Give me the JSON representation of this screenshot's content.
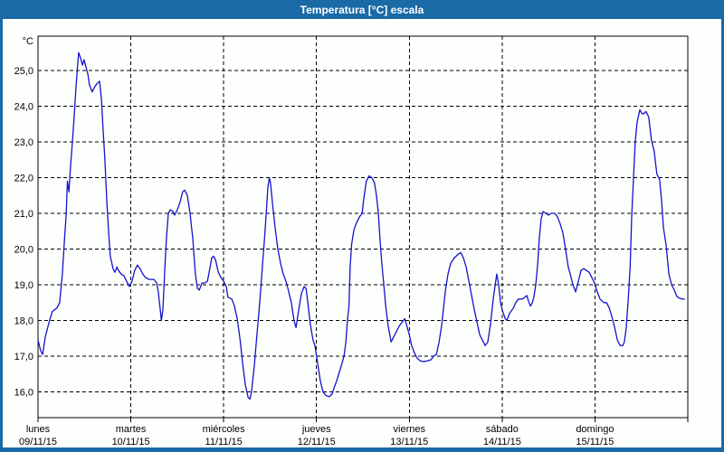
{
  "window": {
    "title": "Temperatura [°C] escala"
  },
  "colors": {
    "titlebar": "#1a6aa6",
    "frame": "#1a6aa6",
    "plot_background": "#fdfffd",
    "plot_line": "#1313cc",
    "grid": "#000000",
    "axis_text": "#000000",
    "title_text": "#ffffff"
  },
  "chart_data": {
    "type": "line",
    "title": "Temperatura [°C] escala",
    "xlabel": "",
    "ylabel": "°C",
    "grid": "dashed",
    "legend_position": "none",
    "xlim_hours": [
      0,
      168
    ],
    "ylim": [
      15.28,
      25.96
    ],
    "y_ticks": [
      {
        "value": 25,
        "label": "25,0"
      },
      {
        "value": 24,
        "label": "24,0"
      },
      {
        "value": 23,
        "label": "23,0"
      },
      {
        "value": 22,
        "label": "22,0"
      },
      {
        "value": 21,
        "label": "21,0"
      },
      {
        "value": 20,
        "label": "20,0"
      },
      {
        "value": 19,
        "label": "19,0"
      },
      {
        "value": 18,
        "label": "18,0"
      },
      {
        "value": 17,
        "label": "17,0"
      },
      {
        "value": 16,
        "label": "16,0"
      }
    ],
    "x_boundaries_hours": [
      0,
      24,
      48,
      72,
      96,
      120,
      144,
      168
    ],
    "x_ticks": [
      {
        "hour": 0,
        "weekday": "lunes",
        "date": "09/11/15"
      },
      {
        "hour": 24,
        "weekday": "martes",
        "date": "10/11/15"
      },
      {
        "hour": 48,
        "weekday": "miércoles",
        "date": "11/11/15"
      },
      {
        "hour": 72,
        "weekday": "jueves",
        "date": "12/11/15"
      },
      {
        "hour": 96,
        "weekday": "viernes",
        "date": "13/11/15"
      },
      {
        "hour": 120,
        "weekday": "sábado",
        "date": "14/11/15"
      },
      {
        "hour": 144,
        "weekday": "domingo",
        "date": "15/11/15"
      }
    ],
    "series": [
      {
        "name": "Temperatura [°C]",
        "color": "#1313cc",
        "points": [
          [
            0,
            17.45
          ],
          [
            0.7,
            17.15
          ],
          [
            1.2,
            17.05
          ],
          [
            1.9,
            17.55
          ],
          [
            3,
            18
          ],
          [
            3.7,
            18.25
          ],
          [
            4.9,
            18.35
          ],
          [
            5.6,
            18.5
          ],
          [
            6.3,
            19.3
          ],
          [
            6.8,
            20.2
          ],
          [
            7.3,
            21
          ],
          [
            7.6,
            21.9
          ],
          [
            8,
            21.6
          ],
          [
            8.4,
            22.3
          ],
          [
            8.9,
            23
          ],
          [
            9.4,
            23.8
          ],
          [
            9.8,
            24.5
          ],
          [
            10.2,
            25.1
          ],
          [
            10.5,
            25.5
          ],
          [
            11,
            25.35
          ],
          [
            11.5,
            25.15
          ],
          [
            11.9,
            25.3
          ],
          [
            12.4,
            25.1
          ],
          [
            12.9,
            24.9
          ],
          [
            13.3,
            24.6
          ],
          [
            14,
            24.4
          ],
          [
            14.7,
            24.55
          ],
          [
            15.4,
            24.65
          ],
          [
            15.9,
            24.7
          ],
          [
            16.4,
            24.2
          ],
          [
            16.8,
            23.4
          ],
          [
            17.3,
            22.5
          ],
          [
            17.8,
            21.3
          ],
          [
            18.3,
            20.4
          ],
          [
            18.7,
            19.8
          ],
          [
            19.4,
            19.45
          ],
          [
            19.9,
            19.35
          ],
          [
            20.4,
            19.5
          ],
          [
            20.8,
            19.4
          ],
          [
            21.5,
            19.3
          ],
          [
            22.2,
            19.25
          ],
          [
            22.9,
            19.1
          ],
          [
            23.6,
            18.95
          ],
          [
            24.3,
            19.1
          ],
          [
            25,
            19.4
          ],
          [
            25.7,
            19.55
          ],
          [
            26.4,
            19.45
          ],
          [
            27.1,
            19.3
          ],
          [
            27.8,
            19.2
          ],
          [
            28.8,
            19.15
          ],
          [
            30,
            19.15
          ],
          [
            30.7,
            19.05
          ],
          [
            31.1,
            18.8
          ],
          [
            31.6,
            18.3
          ],
          [
            31.9,
            18
          ],
          [
            32.3,
            18.3
          ],
          [
            32.8,
            19.5
          ],
          [
            33.2,
            20.3
          ],
          [
            33.7,
            21
          ],
          [
            34.2,
            21.1
          ],
          [
            34.9,
            21.05
          ],
          [
            35.3,
            20.95
          ],
          [
            36,
            21.1
          ],
          [
            36.7,
            21.3
          ],
          [
            37.4,
            21.6
          ],
          [
            37.9,
            21.65
          ],
          [
            38.6,
            21.5
          ],
          [
            39.3,
            21
          ],
          [
            40,
            20.3
          ],
          [
            40.7,
            19.3
          ],
          [
            41.2,
            18.9
          ],
          [
            41.7,
            18.85
          ],
          [
            42.4,
            19.05
          ],
          [
            43.1,
            19.05
          ],
          [
            43.8,
            19.1
          ],
          [
            44.5,
            19.5
          ],
          [
            44.9,
            19.75
          ],
          [
            45.4,
            19.8
          ],
          [
            45.9,
            19.7
          ],
          [
            46.6,
            19.35
          ],
          [
            47.3,
            19.2
          ],
          [
            48,
            19.1
          ],
          [
            48.7,
            18.95
          ],
          [
            49.1,
            18.65
          ],
          [
            50.1,
            18.6
          ],
          [
            50.8,
            18.4
          ],
          [
            51.5,
            18.05
          ],
          [
            52.2,
            17.5
          ],
          [
            52.9,
            16.8
          ],
          [
            53.6,
            16.2
          ],
          [
            54.3,
            15.85
          ],
          [
            54.8,
            15.8
          ],
          [
            55.2,
            16
          ],
          [
            55.9,
            16.7
          ],
          [
            56.6,
            17.6
          ],
          [
            57.1,
            18.2
          ],
          [
            57.6,
            18.9
          ],
          [
            58,
            19.5
          ],
          [
            58.5,
            20.2
          ],
          [
            59,
            21
          ],
          [
            59.4,
            21.7
          ],
          [
            59.8,
            22
          ],
          [
            60.1,
            21.85
          ],
          [
            60.6,
            21.3
          ],
          [
            61.3,
            20.6
          ],
          [
            62,
            20
          ],
          [
            62.7,
            19.6
          ],
          [
            63.4,
            19.3
          ],
          [
            64.1,
            19.1
          ],
          [
            64.6,
            18.9
          ],
          [
            65.5,
            18.5
          ],
          [
            66.2,
            18
          ],
          [
            66.7,
            17.8
          ],
          [
            67.4,
            18.3
          ],
          [
            68.1,
            18.75
          ],
          [
            68.8,
            18.95
          ],
          [
            69.3,
            18.9
          ],
          [
            69.7,
            18.55
          ],
          [
            70.4,
            17.9
          ],
          [
            71.1,
            17.45
          ],
          [
            71.6,
            17.3
          ],
          [
            72.3,
            16.8
          ],
          [
            73,
            16.3
          ],
          [
            73.7,
            16
          ],
          [
            74.4,
            15.9
          ],
          [
            75.4,
            15.87
          ],
          [
            76.1,
            15.95
          ],
          [
            76.5,
            16.1
          ],
          [
            77.2,
            16.3
          ],
          [
            77.9,
            16.55
          ],
          [
            78.6,
            16.8
          ],
          [
            79.1,
            17
          ],
          [
            79.6,
            17.4
          ],
          [
            80,
            18
          ],
          [
            80.4,
            18.4
          ],
          [
            80.7,
            19.5
          ],
          [
            81.1,
            20.15
          ],
          [
            81.7,
            20.55
          ],
          [
            82.4,
            20.75
          ],
          [
            83.1,
            20.9
          ],
          [
            83.8,
            21
          ],
          [
            84.2,
            21.4
          ],
          [
            84.9,
            21.9
          ],
          [
            85.6,
            22.05
          ],
          [
            86.3,
            22
          ],
          [
            87,
            21.85
          ],
          [
            87.5,
            21.5
          ],
          [
            88,
            21
          ],
          [
            88.4,
            20.3
          ],
          [
            88.9,
            19.6
          ],
          [
            89.4,
            19
          ],
          [
            89.9,
            18.4
          ],
          [
            90.6,
            17.8
          ],
          [
            91.3,
            17.4
          ],
          [
            92,
            17.55
          ],
          [
            92.7,
            17.7
          ],
          [
            93.4,
            17.85
          ],
          [
            94.1,
            17.95
          ],
          [
            94.8,
            18.05
          ],
          [
            95.5,
            17.8
          ],
          [
            96,
            17.6
          ],
          [
            96.6,
            17.3
          ],
          [
            97.3,
            17.1
          ],
          [
            98,
            16.95
          ],
          [
            98.8,
            16.87
          ],
          [
            99.7,
            16.85
          ],
          [
            100.6,
            16.87
          ],
          [
            101.6,
            16.9
          ],
          [
            102.3,
            17
          ],
          [
            103,
            17.05
          ],
          [
            103.7,
            17.4
          ],
          [
            104.4,
            17.9
          ],
          [
            104.8,
            18.3
          ],
          [
            105.3,
            18.8
          ],
          [
            106,
            19.3
          ],
          [
            106.7,
            19.6
          ],
          [
            107.6,
            19.75
          ],
          [
            108.6,
            19.85
          ],
          [
            109.3,
            19.9
          ],
          [
            110,
            19.75
          ],
          [
            110.7,
            19.5
          ],
          [
            111.4,
            19.1
          ],
          [
            112.1,
            18.7
          ],
          [
            112.8,
            18.3
          ],
          [
            113.5,
            17.95
          ],
          [
            114.2,
            17.6
          ],
          [
            114.9,
            17.45
          ],
          [
            115.6,
            17.3
          ],
          [
            116.3,
            17.4
          ],
          [
            117,
            17.9
          ],
          [
            117.7,
            18.6
          ],
          [
            118.2,
            19
          ],
          [
            118.6,
            19.3
          ],
          [
            119.1,
            19
          ],
          [
            119.6,
            18.5
          ],
          [
            120,
            18.3
          ],
          [
            120.8,
            18.05
          ],
          [
            121.2,
            18
          ],
          [
            121.9,
            18.2
          ],
          [
            122.9,
            18.35
          ],
          [
            123.5,
            18.5
          ],
          [
            124.2,
            18.6
          ],
          [
            125.2,
            18.6
          ],
          [
            125.9,
            18.65
          ],
          [
            126.4,
            18.7
          ],
          [
            126.8,
            18.55
          ],
          [
            127.3,
            18.4
          ],
          [
            127.8,
            18.5
          ],
          [
            128.2,
            18.65
          ],
          [
            128.7,
            19
          ],
          [
            129.2,
            19.6
          ],
          [
            129.6,
            20.3
          ],
          [
            130.1,
            20.85
          ],
          [
            130.6,
            21.05
          ],
          [
            131.3,
            21
          ],
          [
            132,
            20.95
          ],
          [
            132.7,
            21
          ],
          [
            133.6,
            21
          ],
          [
            134.3,
            20.9
          ],
          [
            135,
            20.7
          ],
          [
            135.7,
            20.45
          ],
          [
            136.4,
            20
          ],
          [
            137.1,
            19.5
          ],
          [
            137.6,
            19.3
          ],
          [
            138.3,
            19
          ],
          [
            139,
            18.8
          ],
          [
            139.7,
            19.1
          ],
          [
            140.4,
            19.4
          ],
          [
            141.1,
            19.45
          ],
          [
            141.8,
            19.4
          ],
          [
            142.5,
            19.35
          ],
          [
            143.2,
            19.2
          ],
          [
            143.9,
            19.05
          ],
          [
            144.6,
            18.8
          ],
          [
            145.3,
            18.6
          ],
          [
            146.3,
            18.5
          ],
          [
            147,
            18.5
          ],
          [
            147.7,
            18.35
          ],
          [
            148.4,
            18.1
          ],
          [
            149.1,
            17.8
          ],
          [
            149.8,
            17.45
          ],
          [
            150.5,
            17.3
          ],
          [
            151.2,
            17.3
          ],
          [
            151.6,
            17.4
          ],
          [
            152.1,
            17.8
          ],
          [
            152.6,
            18.6
          ],
          [
            153.1,
            19.5
          ],
          [
            153.5,
            20.9
          ],
          [
            154,
            22.1
          ],
          [
            154.4,
            23
          ],
          [
            154.9,
            23.55
          ],
          [
            155.6,
            23.9
          ],
          [
            156.1,
            23.8
          ],
          [
            156.5,
            23.78
          ],
          [
            157.2,
            23.85
          ],
          [
            157.9,
            23.7
          ],
          [
            158.6,
            23.05
          ],
          [
            159.3,
            22.75
          ],
          [
            160,
            22.1
          ],
          [
            160.7,
            21.95
          ],
          [
            161.2,
            21.4
          ],
          [
            161.7,
            20.6
          ],
          [
            162.4,
            20.1
          ],
          [
            163.1,
            19.3
          ],
          [
            163.8,
            19
          ],
          [
            164.3,
            18.9
          ],
          [
            164.7,
            18.8
          ],
          [
            165.2,
            18.67
          ],
          [
            165.9,
            18.62
          ],
          [
            166.6,
            18.6
          ],
          [
            167.1,
            18.6
          ]
        ]
      }
    ]
  }
}
